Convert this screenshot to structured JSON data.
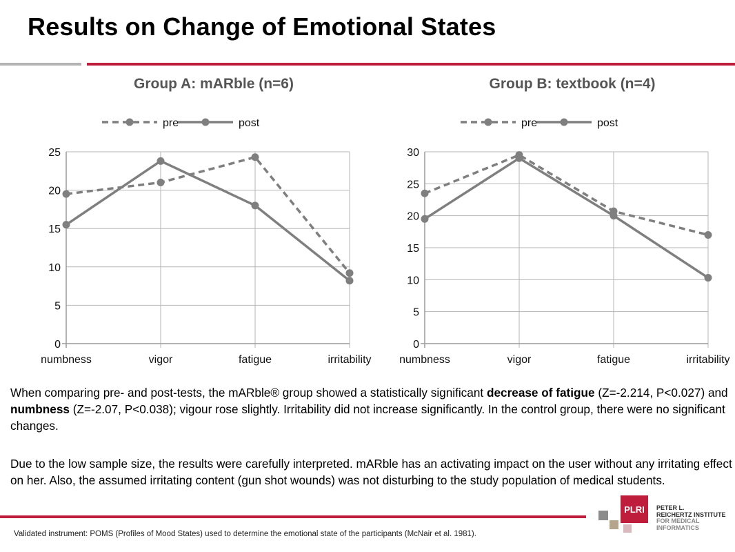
{
  "title": "Results on Change of Emotional States",
  "paragraph1": [
    {
      "text": "When comparing pre- and post-tests, the mARble® group showed a statistically significant ",
      "bold": false
    },
    {
      "text": "decrease of fatigue",
      "bold": true
    },
    {
      "text": " (Z=-2.214, P<0.027) and ",
      "bold": false
    },
    {
      "text": "numbness",
      "bold": true
    },
    {
      "text": " (Z=-2.07, P<0.038); vigour rose slightly. Irritability did not increase significantly. In the control group, there were no significant changes.",
      "bold": false
    }
  ],
  "paragraph2": "Due to the low sample size, the results were carefully interpreted. mARble has an activating impact on the user without any irritating effect on her. Also, the assumed irritating content (gun shot wounds) was not disturbing to the study population of medical students.",
  "footnote": "Validated instrument: POMS (Profiles of Mood States) used to determine the emotional state of the participants (McNair et al. 1981).",
  "logo": {
    "mark": "PLRI",
    "line1": "PETER L.",
    "line2": "REICHERTZ INSTITUTE",
    "line3": "FOR MEDICAL",
    "line4": "INFORMATICS"
  },
  "colors": {
    "accent_red": "#be1e3c",
    "rule_gray": "#b3b3b3",
    "series_gray": "#7f7f7f"
  },
  "chart_data": [
    {
      "type": "line",
      "title": "Group A: mARble (n=6)",
      "categories": [
        "numbness",
        "vigor",
        "fatigue",
        "irritability"
      ],
      "ylim": [
        0,
        25
      ],
      "yticks": [
        0,
        5,
        10,
        15,
        20,
        25
      ],
      "grid": true,
      "legend": "top",
      "series": [
        {
          "name": "pre",
          "style": "dashed",
          "values": [
            19.5,
            21.0,
            24.3,
            9.2
          ]
        },
        {
          "name": "post",
          "style": "solid",
          "values": [
            15.5,
            23.8,
            18.0,
            8.2
          ]
        }
      ]
    },
    {
      "type": "line",
      "title": "Group B: textbook (n=4)",
      "categories": [
        "numbness",
        "vigor",
        "fatigue",
        "irritability"
      ],
      "ylim": [
        0,
        30
      ],
      "yticks": [
        0,
        5,
        10,
        15,
        20,
        25,
        30
      ],
      "grid": true,
      "legend": "top",
      "series": [
        {
          "name": "pre",
          "style": "dashed",
          "values": [
            23.5,
            29.5,
            20.7,
            17.0
          ]
        },
        {
          "name": "post",
          "style": "solid",
          "values": [
            19.5,
            29.0,
            20.0,
            10.3
          ]
        }
      ]
    }
  ]
}
